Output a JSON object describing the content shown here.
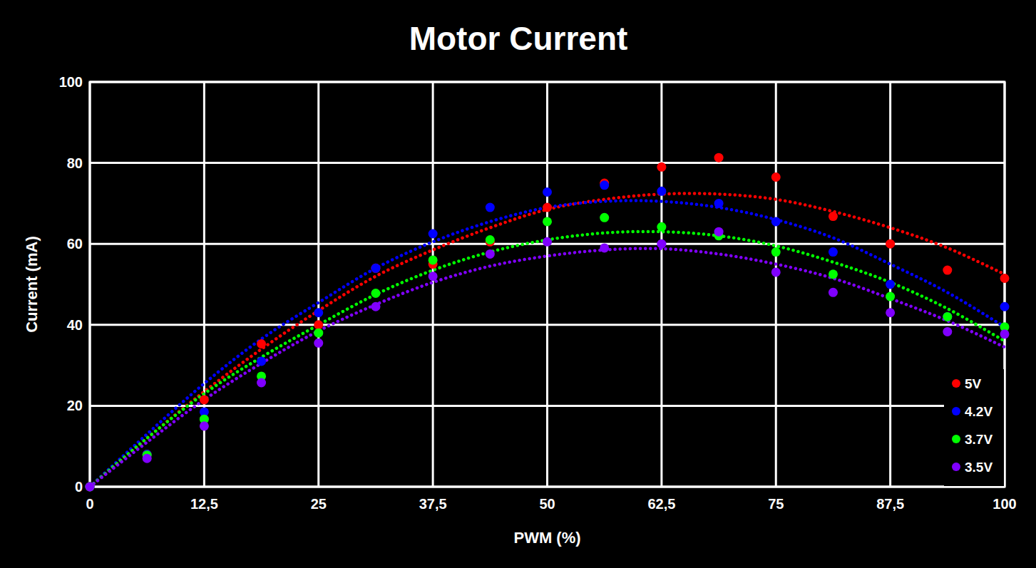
{
  "chart_data": {
    "type": "scatter",
    "title": "Motor Current",
    "x_label": "PWM (%)",
    "y_label": "Current (mA)",
    "x": [
      0,
      6.25,
      12.5,
      18.75,
      25,
      31.25,
      37.5,
      43.75,
      50,
      56.25,
      62.5,
      68.75,
      75,
      81.25,
      87.5,
      93.75,
      100
    ],
    "series": [
      {
        "name": "5V",
        "color": "#ff0000",
        "marker": "circle",
        "values": [
          0,
          8,
          21.5,
          35.3,
          40,
          54,
          55,
          60.5,
          69,
          75,
          79,
          81.3,
          76.5,
          66.8,
          60,
          53.5,
          51.5
        ],
        "trend": [
          0,
          12,
          23.5,
          34,
          43.5,
          52,
          58.5,
          64,
          68.5,
          71,
          72.3,
          72.3,
          71,
          68,
          64,
          59,
          52.5
        ]
      },
      {
        "name": "4.2V",
        "color": "#0000ff",
        "marker": "circle",
        "values": [
          0,
          8,
          18.5,
          31,
          43,
          54,
          62.5,
          69,
          72.8,
          74.5,
          73,
          70,
          65.5,
          58,
          50,
          42,
          44.5
        ],
        "trend": [
          0,
          13,
          25.5,
          36.5,
          45.5,
          54,
          60.5,
          65.5,
          69,
          70.5,
          70.5,
          69,
          66,
          61.5,
          55,
          48,
          39.5
        ]
      },
      {
        "name": "3.7V",
        "color": "#00ff00",
        "marker": "circle",
        "values": [
          0,
          7.8,
          16.7,
          27.3,
          38,
          47.8,
          56,
          61,
          65.5,
          66.5,
          64.2,
          62,
          58,
          52.5,
          47,
          42,
          39.5
        ],
        "trend": [
          0,
          12,
          23,
          32,
          40,
          47.5,
          53.5,
          58,
          61,
          62.7,
          63,
          62,
          59.5,
          55.5,
          50.5,
          44,
          36
        ]
      },
      {
        "name": "3.5V",
        "color": "#8000ff",
        "marker": "circle",
        "values": [
          0,
          7,
          15,
          25.7,
          35.5,
          44.5,
          52,
          57.5,
          60.5,
          59,
          60,
          63,
          53,
          48,
          43,
          38.3,
          37.7
        ],
        "trend": [
          0,
          11,
          21.5,
          30.5,
          38.5,
          45,
          50.5,
          54.5,
          57,
          58.5,
          58.8,
          57.5,
          55,
          51.5,
          46.5,
          41,
          34.5
        ]
      }
    ],
    "xlim": [
      0,
      100
    ],
    "xticks": [
      0,
      {
        "value": 12.5,
        "label": "12,5"
      },
      25,
      {
        "value": 37.5,
        "label": "37,5"
      },
      50,
      {
        "value": 62.5,
        "label": "62,5"
      },
      75,
      {
        "value": 87.5,
        "label": "87,5"
      },
      100
    ],
    "ylim": [
      0,
      100
    ],
    "yticks": [
      0,
      20,
      40,
      60,
      80,
      100
    ],
    "grid": true,
    "legend": "lower right",
    "line_style": "dotted"
  }
}
